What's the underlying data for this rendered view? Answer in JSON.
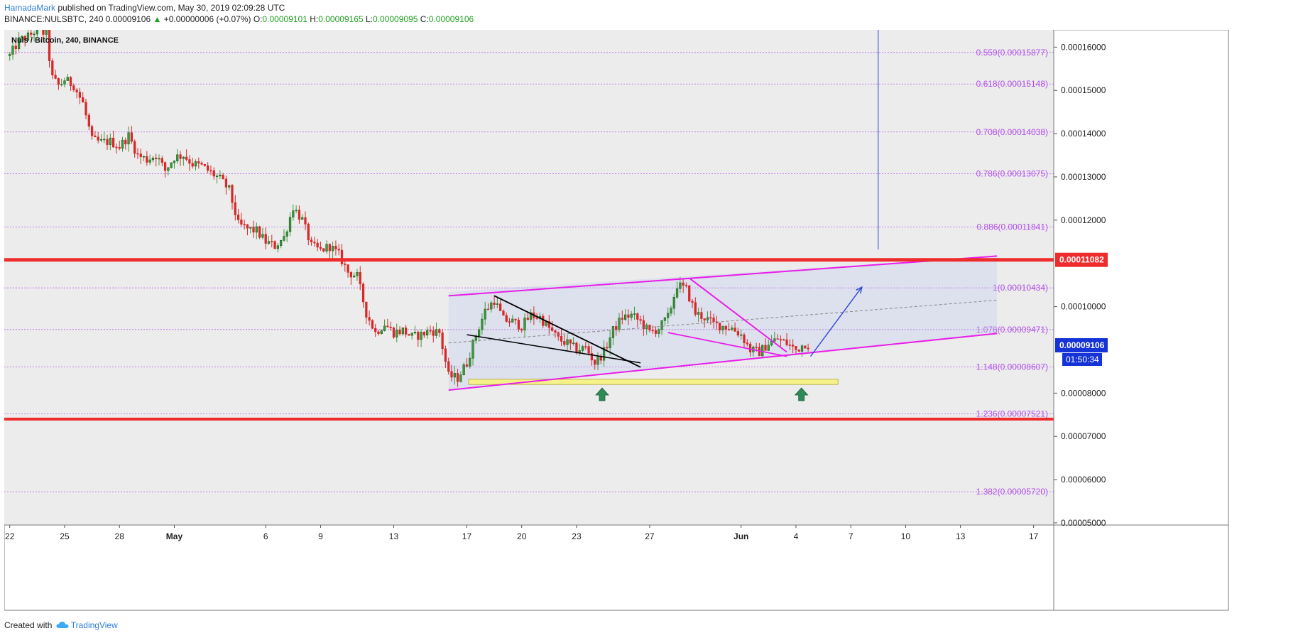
{
  "header": {
    "author": "HamadaMark",
    "published_text": "published on TradingView.com, May 30, 2019 02:09:28 UTC",
    "symbol_line": "BINANCE:NULSBTC, 240",
    "last": "0.00009106",
    "change_arrow": "▲",
    "change": "+0.00000006 (+0.07%)",
    "o_label": "O:",
    "o_value": "0.00009101",
    "h_label": "H:",
    "h_value": "0.00009165",
    "l_label": "L:",
    "l_value": "0.00009095",
    "c_label": "C:",
    "c_value": "0.00009106"
  },
  "legend": {
    "text": "Nuls / Bitcoin, 240, BINANCE"
  },
  "footer": {
    "created_with": "Created with",
    "brand": "TradingView"
  },
  "colors": {
    "up": "#3c9a3c",
    "down": "#d62828",
    "fib": "#b050e8",
    "resistance": "#ef2c2c",
    "channel": "#e81ee8",
    "zone": "#f6f28a",
    "arrow_marker": "#2e8b57",
    "vline": "#3344cc",
    "price_tag": "#1533d6"
  },
  "chart_data": {
    "type": "candlestick",
    "symbol": "NULSBTC",
    "interval": "240",
    "exchange": "BINANCE",
    "y_axis": {
      "min": 4.95e-05,
      "max": 0.000164,
      "ticks": [
        "0.00016000",
        "0.00015000",
        "0.00014000",
        "0.00013000",
        "0.00012000",
        "0.00010000",
        "0.00008000",
        "0.00007000",
        "0.00006000",
        "0.00005000"
      ],
      "tick_values": [
        0.00016,
        0.00015,
        0.00014,
        0.00013,
        0.00012,
        0.0001,
        8e-05,
        7e-05,
        6e-05,
        5e-05
      ]
    },
    "x_axis": {
      "day_min": -1.3,
      "day_max": 56.1,
      "ticks": [
        {
          "label": "22",
          "day": -1
        },
        {
          "label": "25",
          "day": 2
        },
        {
          "label": "28",
          "day": 5
        },
        {
          "label": "May",
          "day": 8
        },
        {
          "label": "6",
          "day": 13
        },
        {
          "label": "9",
          "day": 16
        },
        {
          "label": "13",
          "day": 20
        },
        {
          "label": "17",
          "day": 24
        },
        {
          "label": "20",
          "day": 27
        },
        {
          "label": "23",
          "day": 30
        },
        {
          "label": "27",
          "day": 34
        },
        {
          "label": "Jun",
          "day": 39
        },
        {
          "label": "4",
          "day": 42
        },
        {
          "label": "7",
          "day": 45
        },
        {
          "label": "10",
          "day": 48
        },
        {
          "label": "13",
          "day": 51
        },
        {
          "label": "17",
          "day": 55
        }
      ]
    },
    "candles_per_day": 6,
    "close_path_anchors": [
      [
        -1.0,
        0.000158
      ],
      [
        -0.5,
        0.0001615
      ],
      [
        0.0,
        0.0001625
      ],
      [
        0.5,
        0.000164
      ],
      [
        1.0,
        0.000163
      ],
      [
        1.3,
        0.000153
      ],
      [
        1.7,
        0.000151
      ],
      [
        2.0,
        0.0001525
      ],
      [
        2.5,
        0.0001512
      ],
      [
        3.0,
        0.000147
      ],
      [
        3.5,
        0.0001385
      ],
      [
        4.0,
        0.000138
      ],
      [
        4.5,
        0.0001382
      ],
      [
        5.0,
        0.000137
      ],
      [
        5.5,
        0.0001395
      ],
      [
        6.0,
        0.000135
      ],
      [
        6.5,
        0.000134
      ],
      [
        7.0,
        0.000135
      ],
      [
        7.5,
        0.0001315
      ],
      [
        8.0,
        0.0001345
      ],
      [
        8.5,
        0.000135
      ],
      [
        9.0,
        0.000133
      ],
      [
        9.5,
        0.0001325
      ],
      [
        10.0,
        0.000131
      ],
      [
        10.5,
        0.0001295
      ],
      [
        11.0,
        0.000127
      ],
      [
        11.5,
        0.000119
      ],
      [
        12.0,
        0.000118
      ],
      [
        12.5,
        0.0001175
      ],
      [
        13.0,
        0.000115
      ],
      [
        13.5,
        0.000114
      ],
      [
        14.0,
        0.000116
      ],
      [
        14.5,
        0.000123
      ],
      [
        15.0,
        0.00012
      ],
      [
        15.5,
        0.000114
      ],
      [
        16.0,
        0.000113
      ],
      [
        16.5,
        0.000114
      ],
      [
        17.0,
        0.000112
      ],
      [
        17.5,
        0.000108
      ],
      [
        18.0,
        0.000107
      ],
      [
        18.5,
        9.85e-05
      ],
      [
        19.0,
        9.4e-05
      ],
      [
        19.5,
        9.6e-05
      ],
      [
        20.0,
        9.4e-05
      ],
      [
        20.5,
        9.45e-05
      ],
      [
        21.0,
        9.3e-05
      ],
      [
        21.5,
        9.35e-05
      ],
      [
        22.0,
        9.45e-05
      ],
      [
        22.5,
        9.4e-05
      ],
      [
        23.0,
        8.4e-05
      ],
      [
        23.5,
        8.35e-05
      ],
      [
        24.0,
        8.7e-05
      ],
      [
        24.5,
        9.35e-05
      ],
      [
        25.0,
        9.9e-05
      ],
      [
        25.5,
        0.0001015
      ],
      [
        26.0,
        9.7e-05
      ],
      [
        26.5,
        9.65e-05
      ],
      [
        27.0,
        9.55e-05
      ],
      [
        27.5,
        9.8e-05
      ],
      [
        28.0,
        9.75e-05
      ],
      [
        28.5,
        9.5e-05
      ],
      [
        29.0,
        9.25e-05
      ],
      [
        29.5,
        9.15e-05
      ],
      [
        30.0,
        9e-05
      ],
      [
        30.5,
        9.05e-05
      ],
      [
        31.0,
        8.7e-05
      ],
      [
        31.5,
        8.95e-05
      ],
      [
        32.0,
        9.45e-05
      ],
      [
        32.5,
        9.75e-05
      ],
      [
        33.0,
        9.8e-05
      ],
      [
        33.5,
        9.65e-05
      ],
      [
        34.0,
        9.4e-05
      ],
      [
        34.5,
        9.5e-05
      ],
      [
        35.0,
        9.75e-05
      ],
      [
        35.5,
        0.000105
      ],
      [
        36.0,
        0.000104
      ],
      [
        36.5,
        9.85e-05
      ],
      [
        37.0,
        9.75e-05
      ],
      [
        37.5,
        9.6e-05
      ],
      [
        38.0,
        9.55e-05
      ],
      [
        38.5,
        9.5e-05
      ],
      [
        39.0,
        9.35e-05
      ],
      [
        39.5,
        9e-05
      ],
      [
        40.0,
        8.95e-05
      ],
      [
        40.5,
        9.15e-05
      ],
      [
        41.0,
        9.25e-05
      ],
      [
        41.5,
        9.15e-05
      ],
      [
        42.0,
        9e-05
      ],
      [
        42.5,
        9.15e-05
      ],
      [
        42.8,
        9.11e-05
      ]
    ],
    "fib_levels": [
      {
        "label": "0.559(0.00015877)",
        "value": 0.00015877
      },
      {
        "label": "0.618(0.00015148)",
        "value": 0.00015148
      },
      {
        "label": "0.708(0.00014038)",
        "value": 0.00014038
      },
      {
        "label": "0.786(0.00013075)",
        "value": 0.00013075
      },
      {
        "label": "0.886(0.00011841)",
        "value": 0.00011841
      },
      {
        "label": "1(0.00010434)",
        "value": 0.00010434
      },
      {
        "label": "1.078(0.00009471)",
        "value": 9.471e-05
      },
      {
        "label": "1.148(0.00008607)",
        "value": 8.607e-05
      },
      {
        "label": "1.236(0.00007521)",
        "value": 7.521e-05
      },
      {
        "label": "1.382(0.00005720)",
        "value": 5.72e-05
      }
    ],
    "resistance_price": 0.00011082,
    "resistance_label": "0.00011082",
    "support_price": 7.4e-05,
    "current_price_label": "0.00009106",
    "current_price": 9.106e-05,
    "countdown": "01:50:34",
    "channel": {
      "upper": [
        [
          23.0,
          0.0001025
        ],
        [
          53.0,
          0.0001117
        ]
      ],
      "lower": [
        [
          23.0,
          8.07e-05
        ],
        [
          53.0,
          9.38e-05
        ]
      ],
      "mid": [
        [
          23.0,
          9.16e-05
        ],
        [
          53.0,
          0.0001015
        ]
      ],
      "shade_top": [
        [
          23.0,
          0.0001034
        ],
        [
          53.0,
          0.0001117
        ]
      ],
      "shade_bottom": [
        [
          23.0,
          8.07e-05
        ],
        [
          53.0,
          9.38e-05
        ]
      ]
    },
    "black_wedge": {
      "line1": [
        [
          25.5,
          0.0001025
        ],
        [
          33.5,
          8.6e-05
        ]
      ],
      "line2": [
        [
          24.0,
          9.35e-05
        ],
        [
          33.5,
          8.7e-05
        ]
      ]
    },
    "pink_wedge": {
      "line1": [
        [
          36.2,
          0.0001065
        ],
        [
          41.5,
          8.95e-05
        ]
      ],
      "line2": [
        [
          35.0,
          9.4e-05
        ],
        [
          41.5,
          8.85e-05
        ]
      ]
    },
    "support_zone": {
      "x0": 24.1,
      "x1": 44.3,
      "y0": 8.2e-05,
      "y1": 8.32e-05
    },
    "up_markers": [
      {
        "day": 31.4,
        "value": 8.12e-05
      },
      {
        "day": 42.3,
        "value": 8.12e-05
      }
    ],
    "projection_arrow": [
      [
        42.8,
        8.85e-05
      ],
      [
        45.6,
        0.0001045
      ]
    ],
    "vertical_line": {
      "day": 46.5,
      "from": 0.000164,
      "to": 0.0001132
    }
  }
}
